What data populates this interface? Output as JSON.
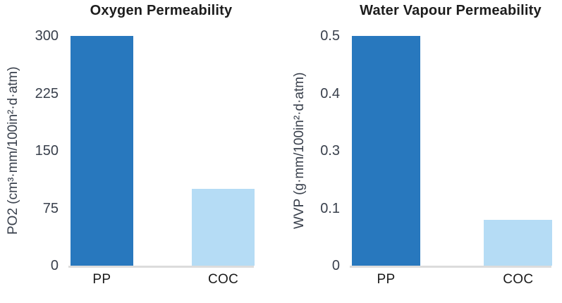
{
  "page": {
    "background": "#ffffff"
  },
  "colors": {
    "bar_dark": "#2878BE",
    "bar_light": "#B5DCF5",
    "axis_line": "#DCDCDC",
    "title_text": "#1D1D1D",
    "tick_text": "#39404C"
  },
  "chart_data": [
    {
      "type": "bar",
      "title": "Oxygen Permeability",
      "ylabel": "PO2 (cm³·mm/100in²·d·atm)",
      "xlabel": "",
      "categories": [
        "PP",
        "COC"
      ],
      "values": [
        300,
        100
      ],
      "ylim": [
        0,
        300
      ],
      "ytick_labels": [
        "0",
        "75",
        "150",
        "225",
        "300"
      ],
      "grid": false,
      "legend": false,
      "bar_colors": [
        "#2878BE",
        "#B5DCF5"
      ]
    },
    {
      "type": "bar",
      "title": "Water Vapour Permeability",
      "ylabel": "WVP (g·mm/100in²·d·atm)",
      "xlabel": "",
      "categories": [
        "PP",
        "COC"
      ],
      "values": [
        0.5,
        0.1
      ],
      "ylim": [
        0,
        0.5
      ],
      "ytick_labels": [
        "0",
        "0.1",
        "0.3",
        "0.4",
        "0.5"
      ],
      "grid": false,
      "legend": false,
      "bar_colors": [
        "#2878BE",
        "#B5DCF5"
      ]
    }
  ]
}
